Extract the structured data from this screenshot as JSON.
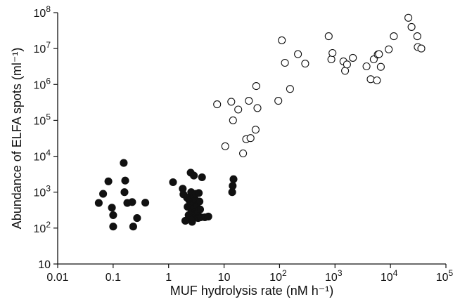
{
  "chart_data": {
    "type": "scatter",
    "title": "",
    "xlabel": "MUF hydrolysis rate (nM h⁻¹)",
    "ylabel": "Abundance of ELFA spots (ml⁻¹)",
    "xscale": "log",
    "yscale": "log",
    "xlim": [
      0.01,
      100000
    ],
    "ylim": [
      10,
      100000000
    ],
    "grid": false,
    "legend": "none",
    "x_ticks": [
      {
        "value": 0.01,
        "label": "0.01"
      },
      {
        "value": 0.1,
        "label": "0.1"
      },
      {
        "value": 1,
        "label": "1"
      },
      {
        "value": 10,
        "label": "10"
      },
      {
        "value": 100,
        "label": "10",
        "sup": "2"
      },
      {
        "value": 1000,
        "label": "10",
        "sup": "3"
      },
      {
        "value": 10000,
        "label": "10",
        "sup": "4"
      },
      {
        "value": 100000,
        "label": "10",
        "sup": "5"
      }
    ],
    "y_ticks": [
      {
        "value": 10,
        "label": "10"
      },
      {
        "value": 100,
        "label": "10",
        "sup": "2"
      },
      {
        "value": 1000,
        "label": "10",
        "sup": "3"
      },
      {
        "value": 10000,
        "label": "10",
        "sup": "4"
      },
      {
        "value": 100000,
        "label": "10",
        "sup": "5"
      },
      {
        "value": 1000000,
        "label": "10",
        "sup": "6"
      },
      {
        "value": 10000000,
        "label": "10",
        "sup": "7"
      },
      {
        "value": 100000000,
        "label": "10",
        "sup": "8"
      }
    ],
    "colors": {
      "filled": "#111111",
      "open_stroke": "#111111",
      "open_fill": "#ffffff"
    },
    "series": [
      {
        "marker": "filled-circle",
        "points": [
          [
            0.055,
            500
          ],
          [
            0.066,
            900
          ],
          [
            0.082,
            2000
          ],
          [
            0.095,
            370
          ],
          [
            0.1,
            230
          ],
          [
            0.1,
            110
          ],
          [
            0.155,
            6500
          ],
          [
            0.16,
            1000
          ],
          [
            0.165,
            2100
          ],
          [
            0.18,
            500
          ],
          [
            0.22,
            530
          ],
          [
            0.23,
            110
          ],
          [
            0.27,
            190
          ],
          [
            0.38,
            510
          ],
          [
            1.2,
            1900
          ],
          [
            1.8,
            1250
          ],
          [
            1.85,
            870
          ],
          [
            2.0,
            160
          ],
          [
            2.15,
            700
          ],
          [
            2.2,
            390
          ],
          [
            2.3,
            230
          ],
          [
            2.35,
            600
          ],
          [
            2.45,
            450
          ],
          [
            2.5,
            3500
          ],
          [
            2.55,
            1000
          ],
          [
            2.6,
            300
          ],
          [
            2.65,
            150
          ],
          [
            2.7,
            180
          ],
          [
            2.75,
            500
          ],
          [
            2.8,
            800
          ],
          [
            2.85,
            2900
          ],
          [
            2.9,
            380
          ],
          [
            3.0,
            250
          ],
          [
            3.05,
            600
          ],
          [
            3.1,
            900
          ],
          [
            3.2,
            420
          ],
          [
            3.3,
            270
          ],
          [
            3.4,
            190
          ],
          [
            3.5,
            950
          ],
          [
            3.6,
            550
          ],
          [
            3.7,
            330
          ],
          [
            3.8,
            200
          ],
          [
            4.0,
            2600
          ],
          [
            4.5,
            200
          ],
          [
            5.2,
            210
          ],
          [
            14.0,
            1000
          ],
          [
            14.3,
            1500
          ],
          [
            14.8,
            2300
          ]
        ]
      },
      {
        "marker": "open-circle",
        "points": [
          [
            7.5,
            280000
          ],
          [
            10.5,
            19000
          ],
          [
            13.5,
            330000
          ],
          [
            14.5,
            100000
          ],
          [
            18,
            200000
          ],
          [
            22,
            12000
          ],
          [
            25,
            30000
          ],
          [
            28,
            350000
          ],
          [
            30,
            32000
          ],
          [
            37,
            55000
          ],
          [
            38,
            900000
          ],
          [
            40,
            220000
          ],
          [
            95,
            350000
          ],
          [
            110,
            17000000
          ],
          [
            125,
            4000000
          ],
          [
            155,
            750000
          ],
          [
            215,
            7000000
          ],
          [
            290,
            3800000
          ],
          [
            770,
            22000000
          ],
          [
            860,
            5000000
          ],
          [
            900,
            7500000
          ],
          [
            1420,
            4400000
          ],
          [
            1520,
            2400000
          ],
          [
            1650,
            3600000
          ],
          [
            2100,
            5500000
          ],
          [
            3700,
            3200000
          ],
          [
            4400,
            1400000
          ],
          [
            5000,
            5000000
          ],
          [
            5700,
            1300000
          ],
          [
            5900,
            6800000
          ],
          [
            6200,
            7000000
          ],
          [
            6700,
            3100000
          ],
          [
            9300,
            9500000
          ],
          [
            11500,
            22000000
          ],
          [
            21000,
            72000000
          ],
          [
            24000,
            40000000
          ],
          [
            30500,
            22000000
          ],
          [
            31000,
            11000000
          ],
          [
            36000,
            10000000
          ]
        ]
      }
    ]
  }
}
